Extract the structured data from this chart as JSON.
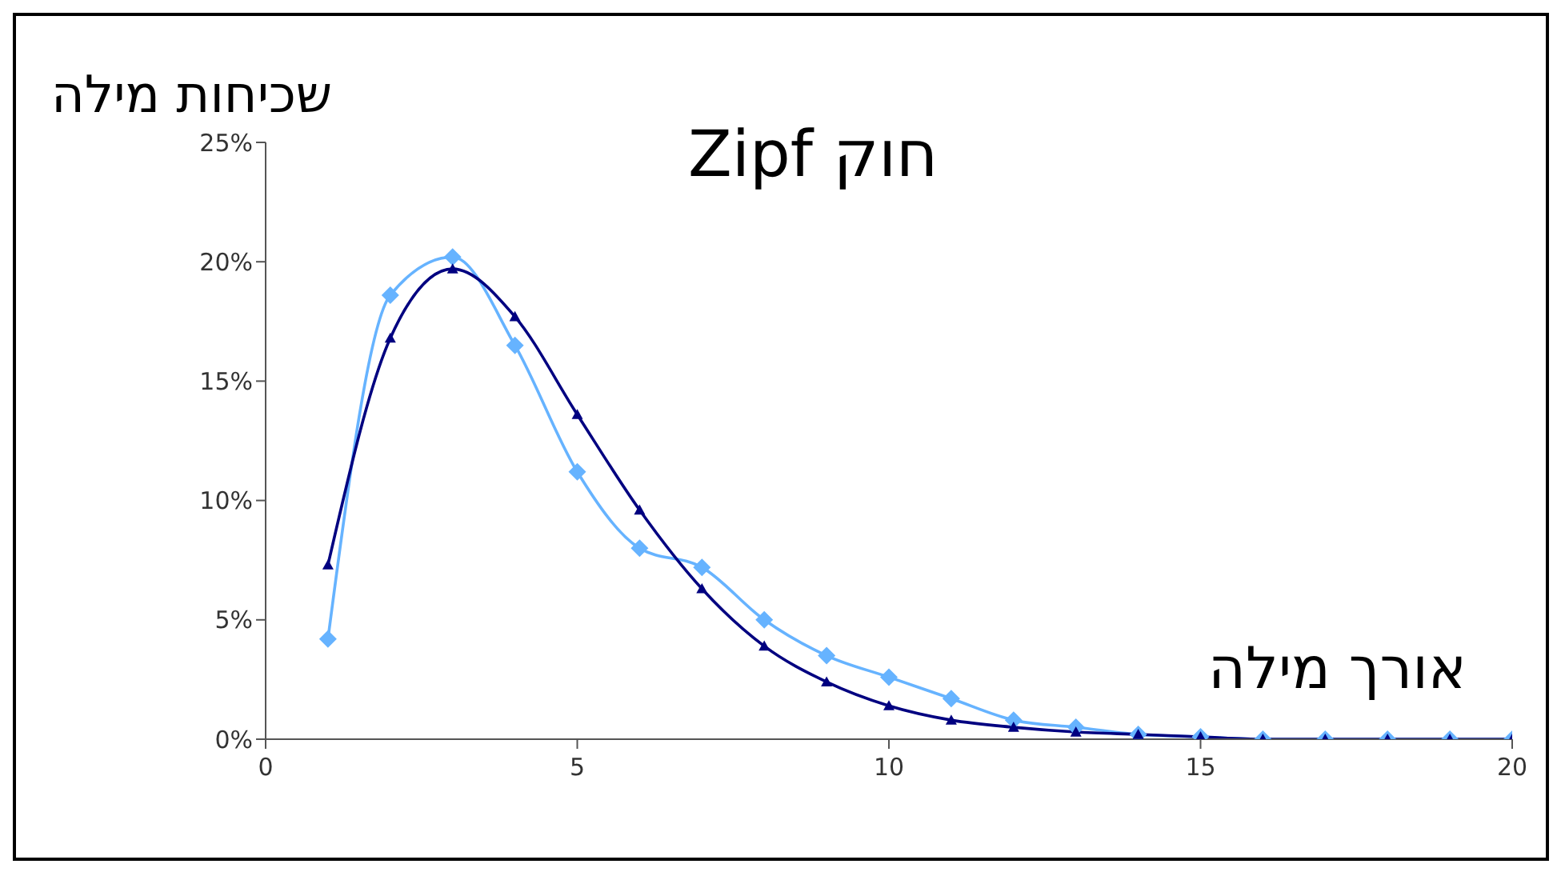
{
  "chart_data": {
    "type": "line",
    "title": "חוק Zipf",
    "xlabel": "אורך מילה",
    "ylabel": "שכיחות מילה",
    "x": [
      1,
      2,
      3,
      4,
      5,
      6,
      7,
      8,
      9,
      10,
      11,
      12,
      13,
      14,
      15,
      16,
      17,
      18,
      19,
      20
    ],
    "series": [
      {
        "color": "#66b3ff",
        "marker": "diamond",
        "values": [
          4.2,
          18.6,
          20.2,
          16.5,
          11.2,
          8.0,
          7.2,
          5.0,
          3.5,
          2.6,
          1.7,
          0.8,
          0.5,
          0.2,
          0.1,
          0.0,
          0.0,
          0.0,
          0.0,
          0.0
        ]
      },
      {
        "color": "#000080",
        "marker": "triangle",
        "values": [
          7.3,
          16.8,
          19.7,
          17.7,
          13.6,
          9.6,
          6.3,
          3.9,
          2.4,
          1.4,
          0.8,
          0.5,
          0.3,
          0.2,
          0.1,
          0.0,
          0.0,
          0.0,
          0.0,
          0.0
        ]
      }
    ],
    "xlim": [
      0,
      20
    ],
    "xticks": [
      0,
      5,
      10,
      15,
      20
    ],
    "ylim": [
      0,
      25
    ],
    "yticks": [
      {
        "value": 0,
        "label": "0%"
      },
      {
        "value": 5,
        "label": "5%"
      },
      {
        "value": 10,
        "label": "10%"
      },
      {
        "value": 15,
        "label": "15%"
      },
      {
        "value": 20,
        "label": "20%"
      },
      {
        "value": 25,
        "label": "25%"
      }
    ],
    "grid": false,
    "legend": false
  }
}
